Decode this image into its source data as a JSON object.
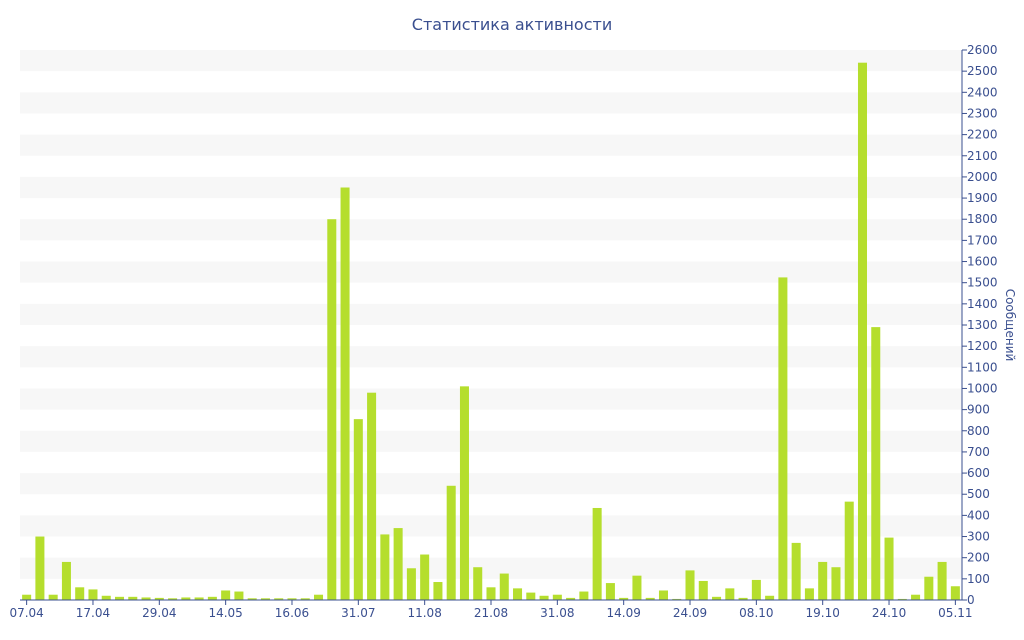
{
  "chart_data": {
    "type": "bar",
    "title": "Статистика активности",
    "ylabel": "Сообщений",
    "ylim": [
      0,
      2600
    ],
    "ytick_step": 100,
    "grid": "alternating horizontal bands",
    "colors": {
      "bar": "#b5de2d",
      "band": "#f7f7f7",
      "text": "#3a4f8f",
      "axis": "#3a4f8f"
    },
    "x_tick_labels": [
      {
        "label": "07.04",
        "index": 0
      },
      {
        "label": "17.04",
        "index": 5
      },
      {
        "label": "29.04",
        "index": 10
      },
      {
        "label": "14.05",
        "index": 15
      },
      {
        "label": "16.06",
        "index": 20
      },
      {
        "label": "31.07",
        "index": 25
      },
      {
        "label": "11.08",
        "index": 30
      },
      {
        "label": "21.08",
        "index": 35
      },
      {
        "label": "31.08",
        "index": 40
      },
      {
        "label": "14.09",
        "index": 45
      },
      {
        "label": "24.09",
        "index": 50
      },
      {
        "label": "08.10",
        "index": 55
      },
      {
        "label": "19.10",
        "index": 60
      },
      {
        "label": "24.10",
        "index": 65
      },
      {
        "label": "05.11",
        "index": 70
      }
    ],
    "values": [
      25,
      300,
      25,
      180,
      60,
      50,
      20,
      15,
      15,
      12,
      10,
      8,
      12,
      12,
      15,
      45,
      40,
      8,
      8,
      8,
      8,
      8,
      25,
      1800,
      1950,
      855,
      980,
      310,
      340,
      150,
      215,
      85,
      540,
      1010,
      155,
      60,
      125,
      55,
      35,
      20,
      25,
      10,
      40,
      435,
      80,
      10,
      115,
      10,
      45,
      5,
      140,
      90,
      15,
      55,
      10,
      95,
      20,
      1525,
      270,
      55,
      180,
      155,
      465,
      2540,
      1290,
      295,
      5,
      25,
      110,
      180,
      65
    ]
  }
}
